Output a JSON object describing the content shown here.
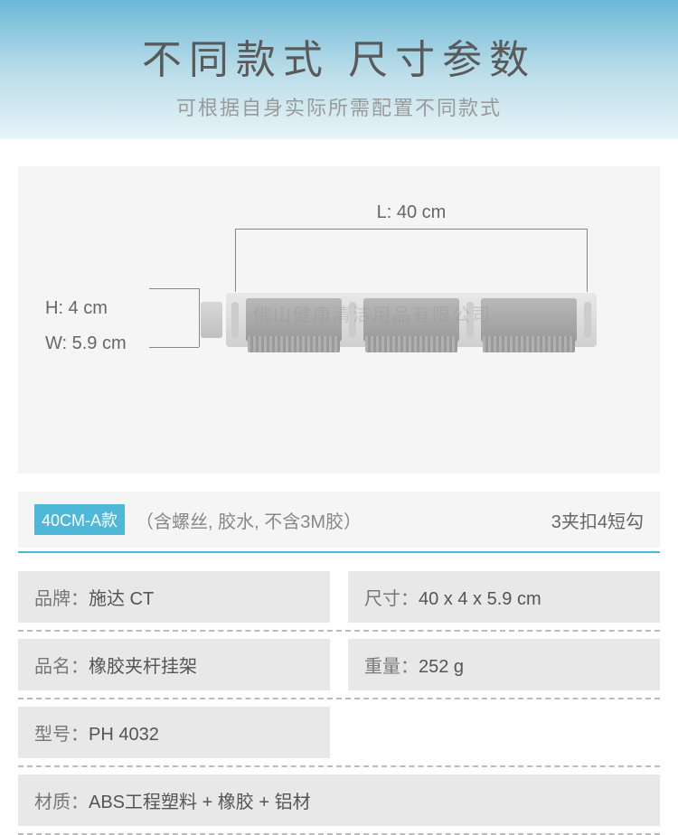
{
  "header": {
    "title": "不同款式  尺寸参数",
    "subtitle": "可根据自身实际所需配置不同款式"
  },
  "dimensions": {
    "length_label": "L: 40 cm",
    "height_label": "H: 4 cm",
    "width_label": "W: 5.9 cm"
  },
  "watermark": "佛山健康清洁用品有限公司",
  "variant": {
    "badge": "40CM-A款",
    "description": "（含螺丝, 胶水, 不含3M胶）",
    "config": "3夹扣4短勾"
  },
  "specs": {
    "brand_label": "品牌：",
    "brand_value": "施达 CT",
    "size_label": "尺寸：",
    "size_value": "40 x 4 x 5.9 cm",
    "name_label": "品名：",
    "name_value": "橡胶夹杆挂架",
    "weight_label": "重量：",
    "weight_value": "252 g",
    "model_label": "型号：",
    "model_value": "PH 4032",
    "material_label": "材质：",
    "material_value": "ABS工程塑料 + 橡胶 + 铝材"
  },
  "colors": {
    "accent": "#4fb8d8",
    "header_gradient_top": "#6bb8d8",
    "cell_bg": "#e8e8e8",
    "panel_bg": "#f5f5f5"
  }
}
